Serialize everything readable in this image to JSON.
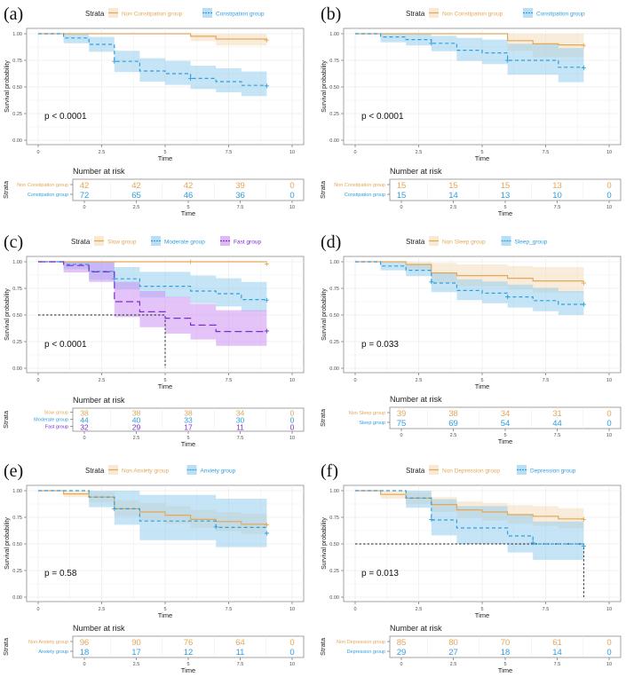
{
  "colors": {
    "orange": "#E7B800",
    "orange_line": "#E3A857",
    "orange_fill": "#F5D9B5",
    "blue": "#2E9FDF",
    "blue_fill": "#8CC9EE",
    "purple": "#7B2FD1",
    "purple_fill": "#C98AF2",
    "median": "#222222",
    "grid": "#EBEBEB",
    "axis_text": "#4D4D4D"
  },
  "chart_data": [
    {
      "panel": "(a)",
      "type": "line",
      "subtype": "kaplan-meier",
      "legend_title": "Strata",
      "legend_position": "top",
      "xlabel": "Time",
      "ylabel": "Survival probability",
      "xlim": [
        0,
        10
      ],
      "ylim": [
        0,
        1
      ],
      "xticks": [
        "0",
        "2.5",
        "5",
        "7.5",
        "10"
      ],
      "yticks": [
        "0.00",
        "0.25",
        "0.50",
        "0.75",
        "1.00"
      ],
      "pvalue": "p < 0.0001",
      "median_line": null,
      "series": [
        {
          "name": "Non Constipation group",
          "color": "orange",
          "dash": "solid",
          "times": [
            0,
            6,
            7,
            9
          ],
          "surv": [
            1.0,
            0.976,
            0.95,
            0.95
          ],
          "lower": [
            1.0,
            0.93,
            0.89,
            0.89
          ],
          "upper": [
            1.0,
            1.0,
            1.0,
            1.0
          ],
          "censor": [
            [
              9,
              0.94
            ]
          ]
        },
        {
          "name": "Constipation group",
          "color": "blue",
          "dash": "short",
          "times": [
            0,
            1,
            2,
            3,
            4,
            5,
            6,
            7,
            8,
            9
          ],
          "surv": [
            1.0,
            0.96,
            0.9,
            0.74,
            0.65,
            0.625,
            0.58,
            0.55,
            0.515,
            0.515
          ],
          "lower": [
            1.0,
            0.91,
            0.83,
            0.64,
            0.55,
            0.52,
            0.48,
            0.45,
            0.415,
            0.415
          ],
          "upper": [
            1.0,
            1.0,
            0.97,
            0.84,
            0.77,
            0.745,
            0.7,
            0.675,
            0.645,
            0.645
          ],
          "censor": [
            [
              3,
              0.74
            ],
            [
              6,
              0.58
            ],
            [
              9,
              0.51
            ]
          ]
        }
      ],
      "risk_table": {
        "title": "Number at risk",
        "ylabel": "Strata",
        "xlabel": "Time",
        "rows": [
          {
            "name": "Non Constipation group",
            "color": "orange",
            "values": [
              "42",
              "42",
              "42",
              "39",
              "0"
            ]
          },
          {
            "name": "Constipation group",
            "color": "blue",
            "values": [
              "72",
              "65",
              "46",
              "36",
              "0"
            ]
          }
        ]
      }
    },
    {
      "panel": "(b)",
      "type": "line",
      "subtype": "kaplan-meier",
      "legend_title": "Strata",
      "legend_position": "top",
      "xlabel": "Time",
      "ylabel": "Survival probability",
      "xlim": [
        0,
        10
      ],
      "ylim": [
        0,
        1
      ],
      "xticks": [
        "0",
        "2.5",
        "5",
        "7.5",
        "10"
      ],
      "yticks": [
        "0.00",
        "0.25",
        "0.50",
        "0.75",
        "1.00"
      ],
      "pvalue": "p < 0.0001",
      "median_line": null,
      "series": [
        {
          "name": "Non Constipation group",
          "color": "orange",
          "dash": "solid",
          "times": [
            0,
            6,
            7,
            8,
            9
          ],
          "surv": [
            1.0,
            0.935,
            0.905,
            0.895,
            0.895
          ],
          "lower": [
            1.0,
            0.84,
            0.78,
            0.78,
            0.78
          ],
          "upper": [
            1.0,
            1.0,
            1.0,
            1.0,
            1.0
          ],
          "censor": [
            [
              9,
              0.89
            ]
          ]
        },
        {
          "name": "Constipation group",
          "color": "blue",
          "dash": "short",
          "times": [
            0,
            1,
            2,
            3,
            4,
            5,
            6,
            8,
            9
          ],
          "surv": [
            1.0,
            0.97,
            0.945,
            0.91,
            0.845,
            0.82,
            0.75,
            0.685,
            0.685
          ],
          "lower": [
            1.0,
            0.92,
            0.89,
            0.835,
            0.745,
            0.715,
            0.615,
            0.545,
            0.545
          ],
          "upper": [
            1.0,
            1.0,
            1.0,
            0.98,
            0.96,
            0.945,
            0.905,
            0.865,
            0.865
          ],
          "censor": [
            [
              3,
              0.91
            ],
            [
              6,
              0.75
            ],
            [
              9,
              0.68
            ]
          ]
        }
      ],
      "risk_table": {
        "title": "Number at risk",
        "ylabel": "Strata",
        "xlabel": "Time",
        "rows": [
          {
            "name": "Non Constipation group",
            "color": "orange",
            "values": [
              "15",
              "15",
              "15",
              "13",
              "0"
            ]
          },
          {
            "name": "Constipation group",
            "color": "blue",
            "values": [
              "15",
              "14",
              "13",
              "10",
              "0"
            ]
          }
        ]
      }
    },
    {
      "panel": "(c)",
      "type": "line",
      "subtype": "kaplan-meier",
      "legend_title": "Strata",
      "legend_position": "top",
      "xlabel": "Time",
      "ylabel": "Survival probability",
      "xlim": [
        0,
        10
      ],
      "ylim": [
        0,
        1
      ],
      "xticks": [
        "0",
        "2.5",
        "5",
        "7.5",
        "10"
      ],
      "yticks": [
        "0.00",
        "0.25",
        "0.50",
        "0.75",
        "1.00"
      ],
      "pvalue": "p < 0.0001",
      "median_line": {
        "x": 5,
        "y": 0.5
      },
      "series": [
        {
          "name": "Slow group",
          "color": "orange",
          "dash": "solid",
          "times": [
            0,
            9
          ],
          "surv": [
            1.0,
            1.0
          ],
          "lower": [
            1.0,
            1.0
          ],
          "upper": [
            1.0,
            1.0
          ],
          "censor": [
            [
              6,
              1.0
            ],
            [
              9,
              0.98
            ]
          ]
        },
        {
          "name": "Moderate group",
          "color": "blue",
          "dash": "short",
          "times": [
            0,
            1,
            2,
            3,
            4,
            6,
            7,
            8,
            9
          ],
          "surv": [
            1.0,
            0.975,
            0.91,
            0.84,
            0.77,
            0.725,
            0.7,
            0.645,
            0.645
          ],
          "lower": [
            1.0,
            0.93,
            0.83,
            0.74,
            0.665,
            0.61,
            0.58,
            0.535,
            0.535
          ],
          "upper": [
            1.0,
            1.0,
            1.0,
            0.95,
            0.905,
            0.87,
            0.845,
            0.81,
            0.81
          ],
          "censor": [
            [
              3,
              0.84
            ],
            [
              9,
              0.64
            ]
          ]
        },
        {
          "name": "Fast group",
          "color": "purple",
          "dash": "long",
          "times": [
            0,
            1,
            2,
            3,
            4,
            5,
            6,
            7,
            9
          ],
          "surv": [
            1.0,
            0.965,
            0.905,
            0.625,
            0.53,
            0.47,
            0.405,
            0.345,
            0.345
          ],
          "lower": [
            1.0,
            0.9,
            0.81,
            0.48,
            0.385,
            0.325,
            0.27,
            0.21,
            0.21
          ],
          "upper": [
            1.0,
            1.0,
            1.0,
            0.81,
            0.725,
            0.67,
            0.605,
            0.545,
            0.545
          ],
          "censor": [
            [
              9,
              0.35
            ]
          ]
        }
      ],
      "risk_table": {
        "title": "Number at risk",
        "ylabel": "Strata",
        "xlabel": "Time",
        "rows": [
          {
            "name": "Slow group",
            "color": "orange",
            "values": [
              "38",
              "38",
              "38",
              "34",
              "0"
            ]
          },
          {
            "name": "Moderate group",
            "color": "blue",
            "values": [
              "44",
              "40",
              "33",
              "30",
              "0"
            ]
          },
          {
            "name": "Fast group",
            "color": "purple",
            "values": [
              "32",
              "29",
              "17",
              "11",
              "0"
            ]
          }
        ]
      }
    },
    {
      "panel": "(d)",
      "type": "line",
      "subtype": "kaplan-meier",
      "legend_title": "Strata",
      "legend_position": "top",
      "xlabel": "Time",
      "ylabel": "Survival probability",
      "xlim": [
        0,
        10
      ],
      "ylim": [
        0,
        1
      ],
      "xticks": [
        "0",
        "2.5",
        "5",
        "7.5",
        "10"
      ],
      "yticks": [
        "0.00",
        "0.25",
        "0.50",
        "0.75",
        "1.00"
      ],
      "pvalue": "p = 0.033",
      "median_line": null,
      "series": [
        {
          "name": "Non Sleep group",
          "color": "orange",
          "dash": "solid",
          "times": [
            0,
            2,
            3,
            4,
            6,
            7,
            9
          ],
          "surv": [
            1.0,
            0.975,
            0.895,
            0.87,
            0.845,
            0.82,
            0.82
          ],
          "lower": [
            1.0,
            0.93,
            0.8,
            0.77,
            0.74,
            0.71,
            0.71
          ],
          "upper": [
            1.0,
            1.0,
            0.99,
            0.975,
            0.96,
            0.95,
            0.95
          ],
          "censor": [
            [
              9,
              0.8
            ]
          ]
        },
        {
          "name": "Sleep_group",
          "color": "blue",
          "dash": "short",
          "times": [
            0,
            1,
            2,
            3,
            4,
            5,
            6,
            7,
            8,
            9
          ],
          "surv": [
            1.0,
            0.96,
            0.92,
            0.8,
            0.73,
            0.705,
            0.67,
            0.635,
            0.6,
            0.6
          ],
          "lower": [
            1.0,
            0.92,
            0.865,
            0.715,
            0.64,
            0.61,
            0.57,
            0.535,
            0.5,
            0.5
          ],
          "upper": [
            1.0,
            1.0,
            0.98,
            0.895,
            0.835,
            0.815,
            0.785,
            0.755,
            0.725,
            0.725
          ],
          "censor": [
            [
              3,
              0.81
            ],
            [
              6,
              0.67
            ],
            [
              9,
              0.6
            ]
          ]
        }
      ],
      "risk_table": {
        "title": "Number at risk",
        "ylabel": "Strata",
        "xlabel": "Time",
        "rows": [
          {
            "name": "Non Sleep group",
            "color": "orange",
            "values": [
              "39",
              "38",
              "34",
              "31",
              "0"
            ]
          },
          {
            "name": "Sleep group",
            "color": "blue",
            "values": [
              "75",
              "69",
              "54",
              "44",
              "0"
            ]
          }
        ]
      }
    },
    {
      "panel": "(e)",
      "type": "line",
      "subtype": "kaplan-meier",
      "legend_title": "Strata",
      "legend_position": "top",
      "xlabel": "Time",
      "ylabel": "Survival probability",
      "xlim": [
        0,
        10
      ],
      "ylim": [
        0,
        1
      ],
      "xticks": [
        "0",
        "2.5",
        "5",
        "7.5",
        "10"
      ],
      "yticks": [
        "0.00",
        "0.25",
        "0.50",
        "0.75",
        "1.00"
      ],
      "pvalue": "p = 0.58",
      "median_line": null,
      "series": [
        {
          "name": "Non Anxiety group",
          "color": "orange",
          "dash": "solid",
          "times": [
            0,
            1,
            2,
            3,
            4,
            5,
            6,
            7,
            8,
            9
          ],
          "surv": [
            1.0,
            0.97,
            0.94,
            0.83,
            0.8,
            0.77,
            0.73,
            0.71,
            0.685,
            0.685
          ],
          "lower": [
            1.0,
            0.94,
            0.89,
            0.76,
            0.72,
            0.69,
            0.65,
            0.62,
            0.595,
            0.595
          ],
          "upper": [
            1.0,
            1.0,
            0.99,
            0.91,
            0.885,
            0.855,
            0.82,
            0.8,
            0.785,
            0.785
          ],
          "censor": [
            [
              9,
              0.68
            ]
          ]
        },
        {
          "name": "Anxiety group",
          "color": "blue",
          "dash": "short",
          "times": [
            0,
            2,
            3,
            4,
            7,
            9
          ],
          "surv": [
            1.0,
            0.94,
            0.83,
            0.715,
            0.655,
            0.655
          ],
          "lower": [
            1.0,
            0.845,
            0.68,
            0.535,
            0.47,
            0.47
          ],
          "upper": [
            1.0,
            1.0,
            1.0,
            0.96,
            0.925,
            0.925
          ],
          "censor": [
            [
              3,
              0.83
            ],
            [
              7,
              0.66
            ],
            [
              9,
              0.6
            ]
          ]
        }
      ],
      "risk_table": {
        "title": "Number at risk",
        "ylabel": "Strata",
        "xlabel": "Time",
        "rows": [
          {
            "name": "Non Anxiety group",
            "color": "orange",
            "values": [
              "96",
              "90",
              "76",
              "64",
              "0"
            ]
          },
          {
            "name": "Anxiety group",
            "color": "blue",
            "values": [
              "18",
              "17",
              "12",
              "11",
              "0"
            ]
          }
        ]
      }
    },
    {
      "panel": "(f)",
      "type": "line",
      "subtype": "kaplan-meier",
      "legend_title": "Strata",
      "legend_position": "top",
      "xlabel": "Time",
      "ylabel": "Survival probability",
      "xlim": [
        0,
        10
      ],
      "ylim": [
        0,
        1
      ],
      "xticks": [
        "0",
        "2.5",
        "5",
        "7.5",
        "10"
      ],
      "yticks": [
        "0.00",
        "0.25",
        "0.50",
        "0.75",
        "1.00"
      ],
      "pvalue": "p = 0.013",
      "median_line": {
        "x": 9,
        "y": 0.5
      },
      "series": [
        {
          "name": "Non Depression group",
          "color": "orange",
          "dash": "solid",
          "times": [
            0,
            1,
            2,
            3,
            4,
            5,
            6,
            7,
            8,
            9
          ],
          "surv": [
            1.0,
            0.965,
            0.93,
            0.87,
            0.82,
            0.8,
            0.775,
            0.76,
            0.735,
            0.735
          ],
          "lower": [
            1.0,
            0.925,
            0.875,
            0.8,
            0.745,
            0.72,
            0.69,
            0.67,
            0.645,
            0.645
          ],
          "upper": [
            1.0,
            1.0,
            0.985,
            0.94,
            0.9,
            0.885,
            0.865,
            0.855,
            0.835,
            0.835
          ],
          "censor": [
            [
              9,
              0.73
            ]
          ]
        },
        {
          "name": "Depression group",
          "color": "blue",
          "dash": "short",
          "times": [
            0,
            2,
            3,
            4,
            6,
            7,
            9
          ],
          "surv": [
            1.0,
            0.93,
            0.725,
            0.65,
            0.575,
            0.5,
            0.5
          ],
          "lower": [
            1.0,
            0.84,
            0.58,
            0.5,
            0.42,
            0.35,
            0.35
          ],
          "upper": [
            1.0,
            1.0,
            0.92,
            0.855,
            0.78,
            0.71,
            0.71
          ],
          "censor": [
            [
              3,
              0.73
            ],
            [
              7,
              0.51
            ],
            [
              9,
              0.48
            ]
          ]
        }
      ],
      "risk_table": {
        "title": "Number at risk",
        "ylabel": "Strata",
        "xlabel": "Time",
        "rows": [
          {
            "name": "Non Depression group",
            "color": "orange",
            "values": [
              "85",
              "80",
              "70",
              "61",
              "0"
            ]
          },
          {
            "name": "Depression group",
            "color": "blue",
            "values": [
              "29",
              "27",
              "18",
              "14",
              "0"
            ]
          }
        ]
      }
    }
  ]
}
